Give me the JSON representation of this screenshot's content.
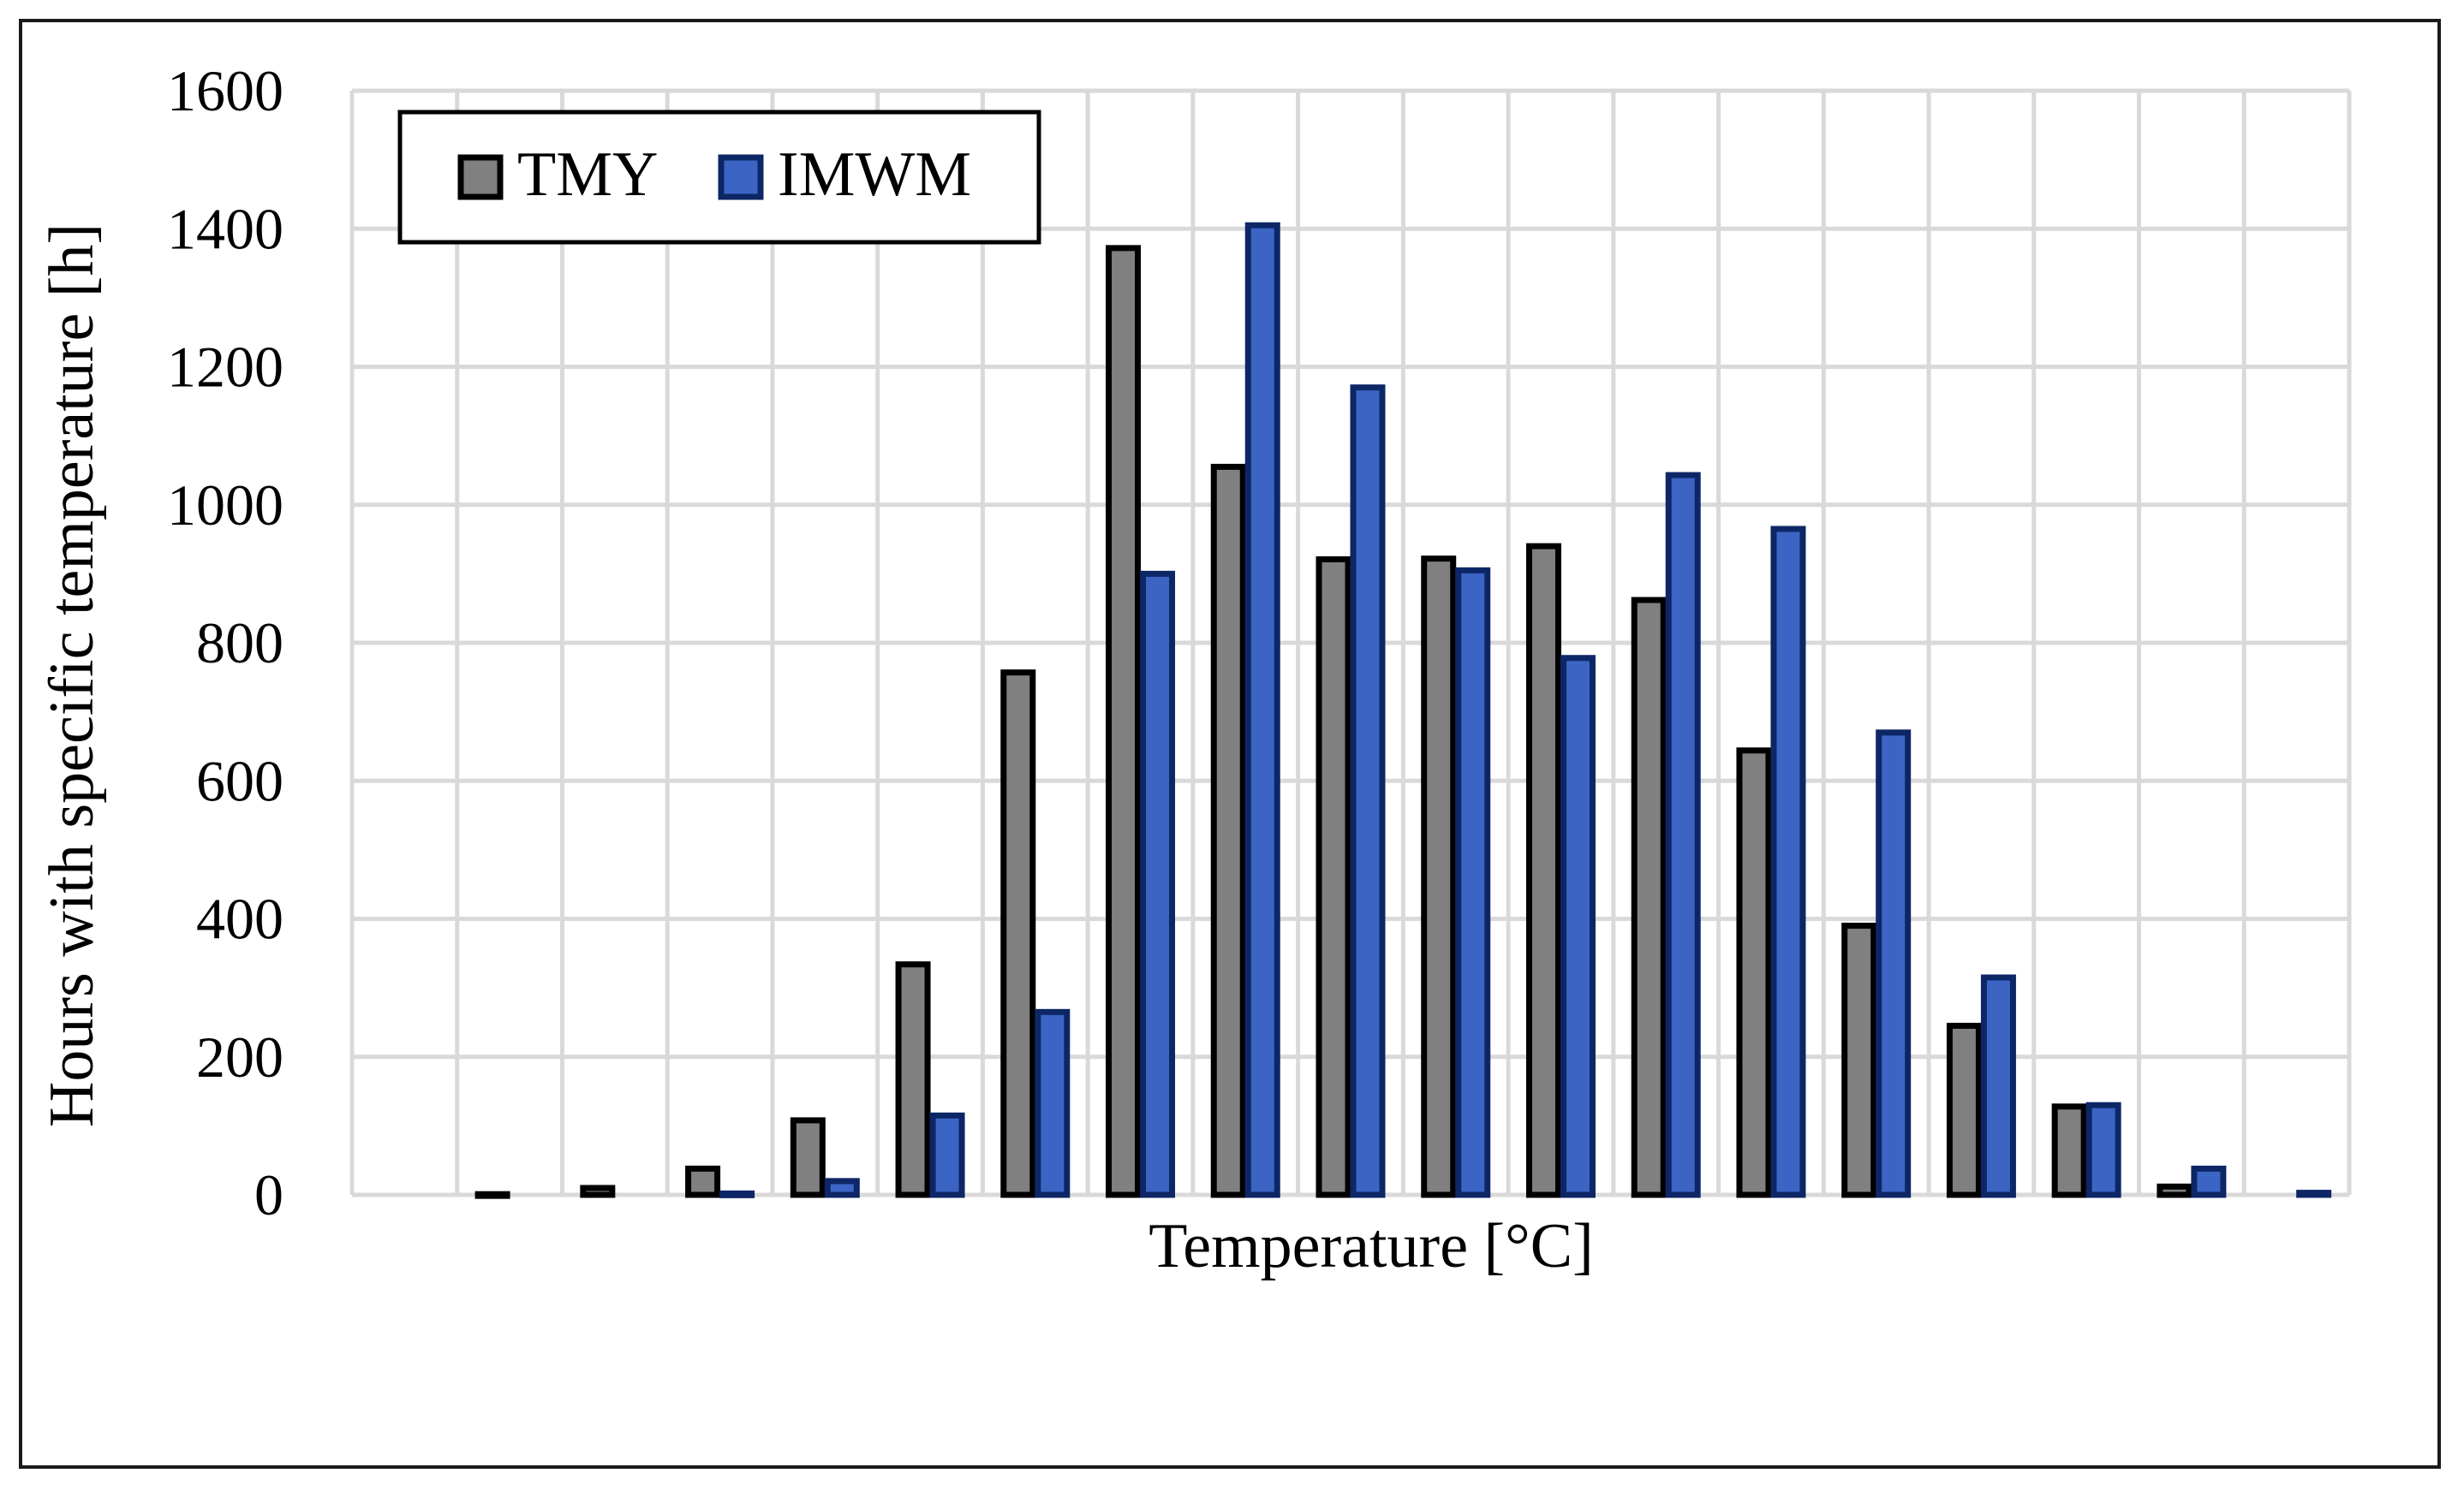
{
  "chart_data": {
    "type": "bar",
    "title": "",
    "xlabel": "Temperature [°C]",
    "ylabel": "Hours with specific temperature [h]",
    "ylim": [
      0,
      1600
    ],
    "yticks": [
      "0",
      "200",
      "400",
      "600",
      "800",
      "1000",
      "1200",
      "1400",
      "1600"
    ],
    "categories": [
      "",
      "",
      "",
      "",
      "",
      "",
      "",
      "",
      "",
      "",
      "",
      "",
      "",
      "",
      "",
      "",
      "",
      "",
      ""
    ],
    "grid": true,
    "legend_position": "top-left",
    "series": [
      {
        "name": "TMY",
        "color": "#808080",
        "edge_color": "#000000",
        "values": [
          0,
          1,
          10,
          38,
          108,
          334,
          757,
          1372,
          1055,
          921,
          922,
          940,
          862,
          644,
          390,
          245,
          128,
          12,
          0
        ]
      },
      {
        "name": "IMWM",
        "color": "#3c64c4",
        "edge_color": "#0d2766",
        "values": [
          0,
          0,
          0,
          2,
          20,
          115,
          265,
          900,
          1405,
          1170,
          905,
          778,
          1043,
          965,
          670,
          315,
          130,
          38,
          3
        ]
      }
    ]
  }
}
